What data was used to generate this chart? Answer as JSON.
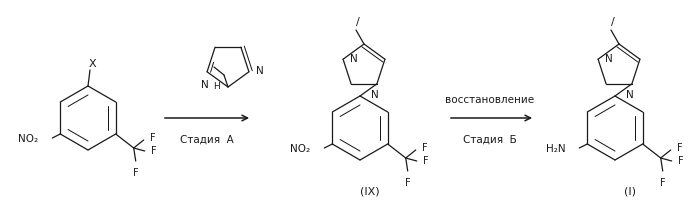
{
  "bg_color": "#ffffff",
  "line_color": "#1a1a1a",
  "text_color": "#1a1a1a",
  "figsize": [
    6.99,
    2.06
  ],
  "dpi": 100,
  "stage_a_text": "Стадия  А",
  "stage_b_text": "Стадия  Б",
  "restore_text": "восстановление",
  "label_ix": "(IX)",
  "label_i": "(I)"
}
